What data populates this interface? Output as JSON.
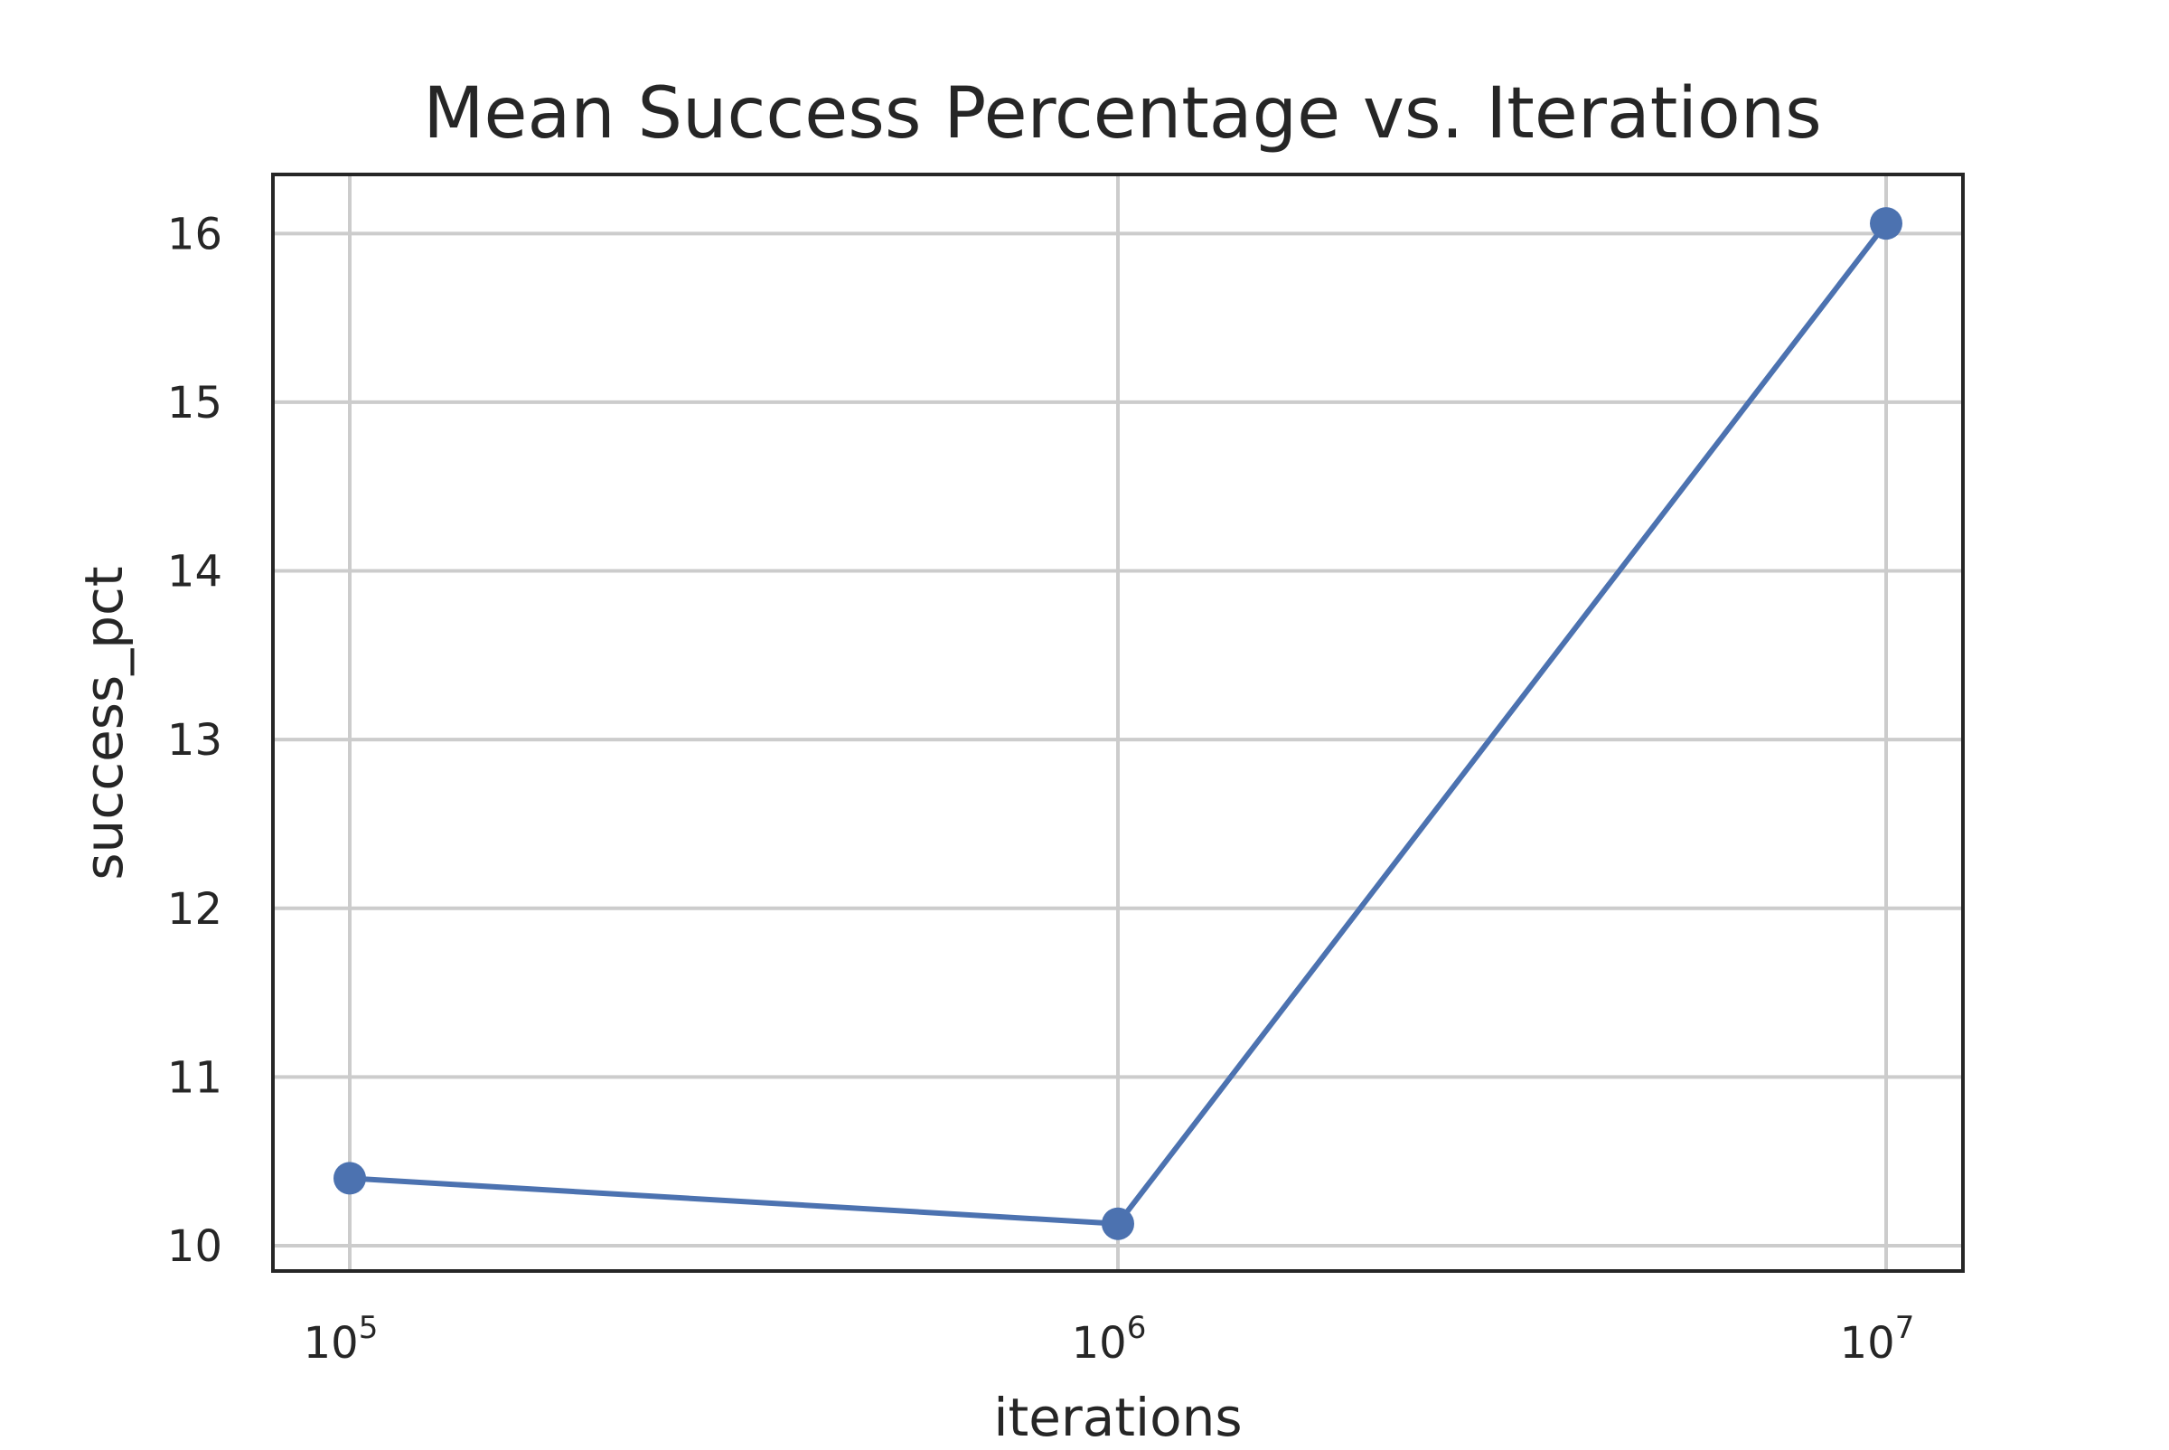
{
  "chart_data": {
    "type": "line",
    "title": "Mean Success Percentage vs. Iterations",
    "xlabel": "iterations",
    "ylabel": "success_pct",
    "x_scale": "log",
    "x": [
      100000,
      1000000,
      10000000
    ],
    "series": [
      {
        "values": [
          10.4,
          10.13,
          16.06
        ]
      }
    ],
    "x_ticks": [
      {
        "base": "10",
        "exponent": "5"
      },
      {
        "base": "10",
        "exponent": "6"
      },
      {
        "base": "10",
        "exponent": "7"
      }
    ],
    "y_ticks": [
      "10",
      "11",
      "12",
      "13",
      "14",
      "15",
      "16"
    ],
    "ylim": [
      9.85,
      16.35
    ],
    "xlim": [
      79432.8,
      12589254.1
    ],
    "grid": true,
    "colors": {
      "series": "#4c72b0",
      "grid": "#cccccc",
      "frame": "#262626",
      "text": "#262626"
    }
  }
}
